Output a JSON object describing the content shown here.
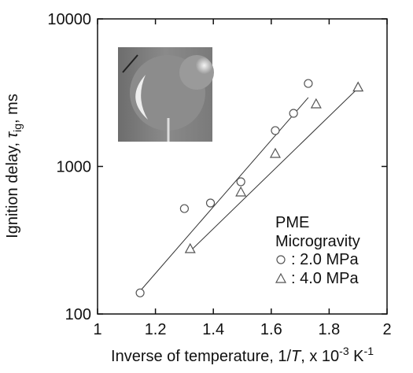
{
  "chart_data": {
    "type": "scatter",
    "ylabel": [
      "Ignition delay, ",
      "τ",
      "ig",
      ", ms"
    ],
    "xlabel": [
      "Inverse of temperature, 1/",
      "T",
      ", x 10",
      "-3",
      " K",
      "-1"
    ],
    "legend_title": [
      "PME",
      "Microgravity"
    ],
    "xlim": [
      1,
      2
    ],
    "xticks": [
      1,
      1.2,
      1.4,
      1.6,
      1.8,
      2
    ],
    "ylim": [
      100,
      10000
    ],
    "yticks": [
      100,
      1000,
      10000
    ],
    "log_y": true,
    "series": [
      {
        "name": ": 2.0 MPa",
        "marker": "circle",
        "color": "#555555",
        "x": [
          1.147,
          1.3,
          1.39,
          1.495,
          1.614,
          1.677,
          1.728
        ],
        "values": [
          139,
          518,
          565,
          787,
          1750,
          2290,
          3650
        ],
        "fit": {
          "x": [
            1.147,
            1.728
          ],
          "y": [
            143,
            2930
          ]
        }
      },
      {
        "name": ": 4.0 MPa",
        "marker": "triangle",
        "color": "#555555",
        "x": [
          1.32,
          1.495,
          1.614,
          1.755,
          1.9
        ],
        "values": [
          277,
          671,
          1225,
          2655,
          3450
        ],
        "fit": {
          "x": [
            1.323,
            1.9
          ],
          "y": [
            270,
            3395
          ]
        }
      }
    ]
  }
}
